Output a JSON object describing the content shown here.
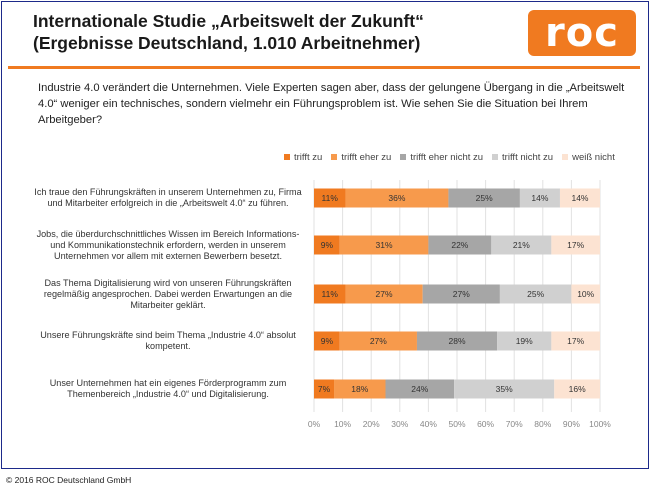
{
  "header": {
    "title_line1": "Internationale Studie „Arbeitswelt der Zukunft“",
    "title_line2": "(Ergebnisse Deutschland, 1.010 Arbeitnehmer)",
    "logo_text": "roc"
  },
  "question": "Industrie 4.0 verändert die Unternehmen. Viele Experten sagen aber, dass der gelungene Übergang in die „Arbeitswelt 4.0“ weniger ein technisches, sondern vielmehr ein Führungsproblem ist. Wie sehen Sie die Situation bei Ihrem Arbeitgeber?",
  "footer": "© 2016 ROC Deutschland GmbH",
  "colors": {
    "accent": "#f07a20",
    "series": [
      "#f07a20",
      "#f79a4c",
      "#a6a6a6",
      "#d0d0d0",
      "#fce3d2"
    ]
  },
  "chart_data": {
    "type": "bar",
    "orientation": "horizontal",
    "stacked": true,
    "categories": [
      "Ich traue den Führungskräften in unserem Unternehmen zu, Firma und Mitarbeiter erfolgreich in die „Arbeitswelt 4.0“ zu führen.",
      "Jobs, die überdurchschnittliches Wissen im Bereich Informations- und Kommunikationstechnik erfordern, werden in unserem Unternehmen vor allem mit externen Bewerbern besetzt.",
      "Das Thema Digitalisierung wird von unseren Führungskräften regelmäßig angesprochen. Dabei werden Erwartungen an die Mitarbeiter geklärt.",
      "Unsere Führungskräfte sind beim Thema „Industrie 4.0“ absolut kompetent.",
      "Unser Unternehmen hat ein eigenes Förderprogramm zum Themenbereich „Industrie 4.0“ und Digitalisierung."
    ],
    "category_lines": [
      [
        "Ich traue den Führungskräften in unserem Unternehmen zu, Firma",
        "und Mitarbeiter erfolgreich in die „Arbeitswelt 4.0“ zu führen."
      ],
      [
        "Jobs, die überdurchschnittliches Wissen im Bereich Informations-",
        "und Kommunikationstechnik erfordern, werden in unserem",
        "Unternehmen vor allem mit externen Bewerbern besetzt."
      ],
      [
        "Das Thema Digitalisierung wird von unseren Führungskräften",
        "regelmäßig angesprochen. Dabei werden Erwartungen an die",
        "Mitarbeiter geklärt."
      ],
      [
        "Unsere Führungskräfte sind beim Thema „Industrie 4.0“ absolut",
        "kompetent."
      ],
      [
        "Unser Unternehmen hat ein eigenes Förderprogramm zum",
        "Themenbereich „Industrie 4.0“ und Digitalisierung."
      ]
    ],
    "series": [
      {
        "name": "trifft zu",
        "values": [
          11,
          9,
          11,
          9,
          7
        ]
      },
      {
        "name": "trifft eher zu",
        "values": [
          36,
          31,
          27,
          27,
          18
        ]
      },
      {
        "name": "trifft eher nicht zu",
        "values": [
          25,
          22,
          27,
          28,
          24
        ]
      },
      {
        "name": "trifft nicht zu",
        "values": [
          14,
          21,
          25,
          19,
          35
        ]
      },
      {
        "name": "weiß nicht",
        "values": [
          14,
          17,
          10,
          17,
          16
        ]
      }
    ],
    "value_suffix": "%",
    "xlim": [
      0,
      100
    ],
    "xticks": [
      "0%",
      "10%",
      "20%",
      "30%",
      "40%",
      "50%",
      "60%",
      "70%",
      "80%",
      "90%",
      "100%"
    ],
    "grid": true,
    "legend_position": "top"
  }
}
